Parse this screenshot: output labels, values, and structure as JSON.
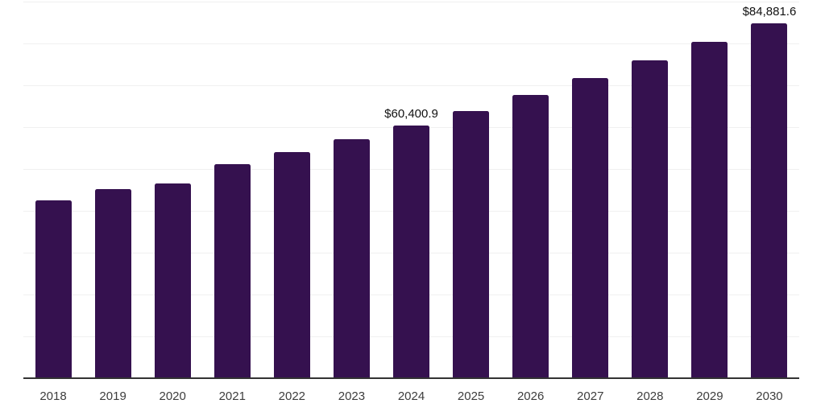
{
  "chart_data": {
    "type": "bar",
    "title": "",
    "xlabel": "",
    "ylabel": "",
    "categories": [
      "2018",
      "2019",
      "2020",
      "2021",
      "2022",
      "2023",
      "2024",
      "2025",
      "2026",
      "2027",
      "2028",
      "2029",
      "2030"
    ],
    "values": [
      42500,
      45200,
      46500,
      51100,
      54100,
      57200,
      60400.9,
      63900,
      67600,
      71700,
      75900,
      80300,
      84881.6
    ],
    "labeled_points": [
      {
        "category": "2024",
        "label": "$60,400.9"
      },
      {
        "category": "2030",
        "label": "$84,881.6"
      }
    ],
    "ylim": [
      0,
      90000
    ],
    "gridline_interval": 10000,
    "grid": "horizontal",
    "legend": "none",
    "y_tick_labels_visible": false,
    "colors": {
      "bar": "#35114F",
      "axis": "#333333",
      "gridline": "#f0f0f0",
      "tick_label": "#3d3d3d",
      "value_label": "#111111",
      "background": "#ffffff"
    }
  }
}
